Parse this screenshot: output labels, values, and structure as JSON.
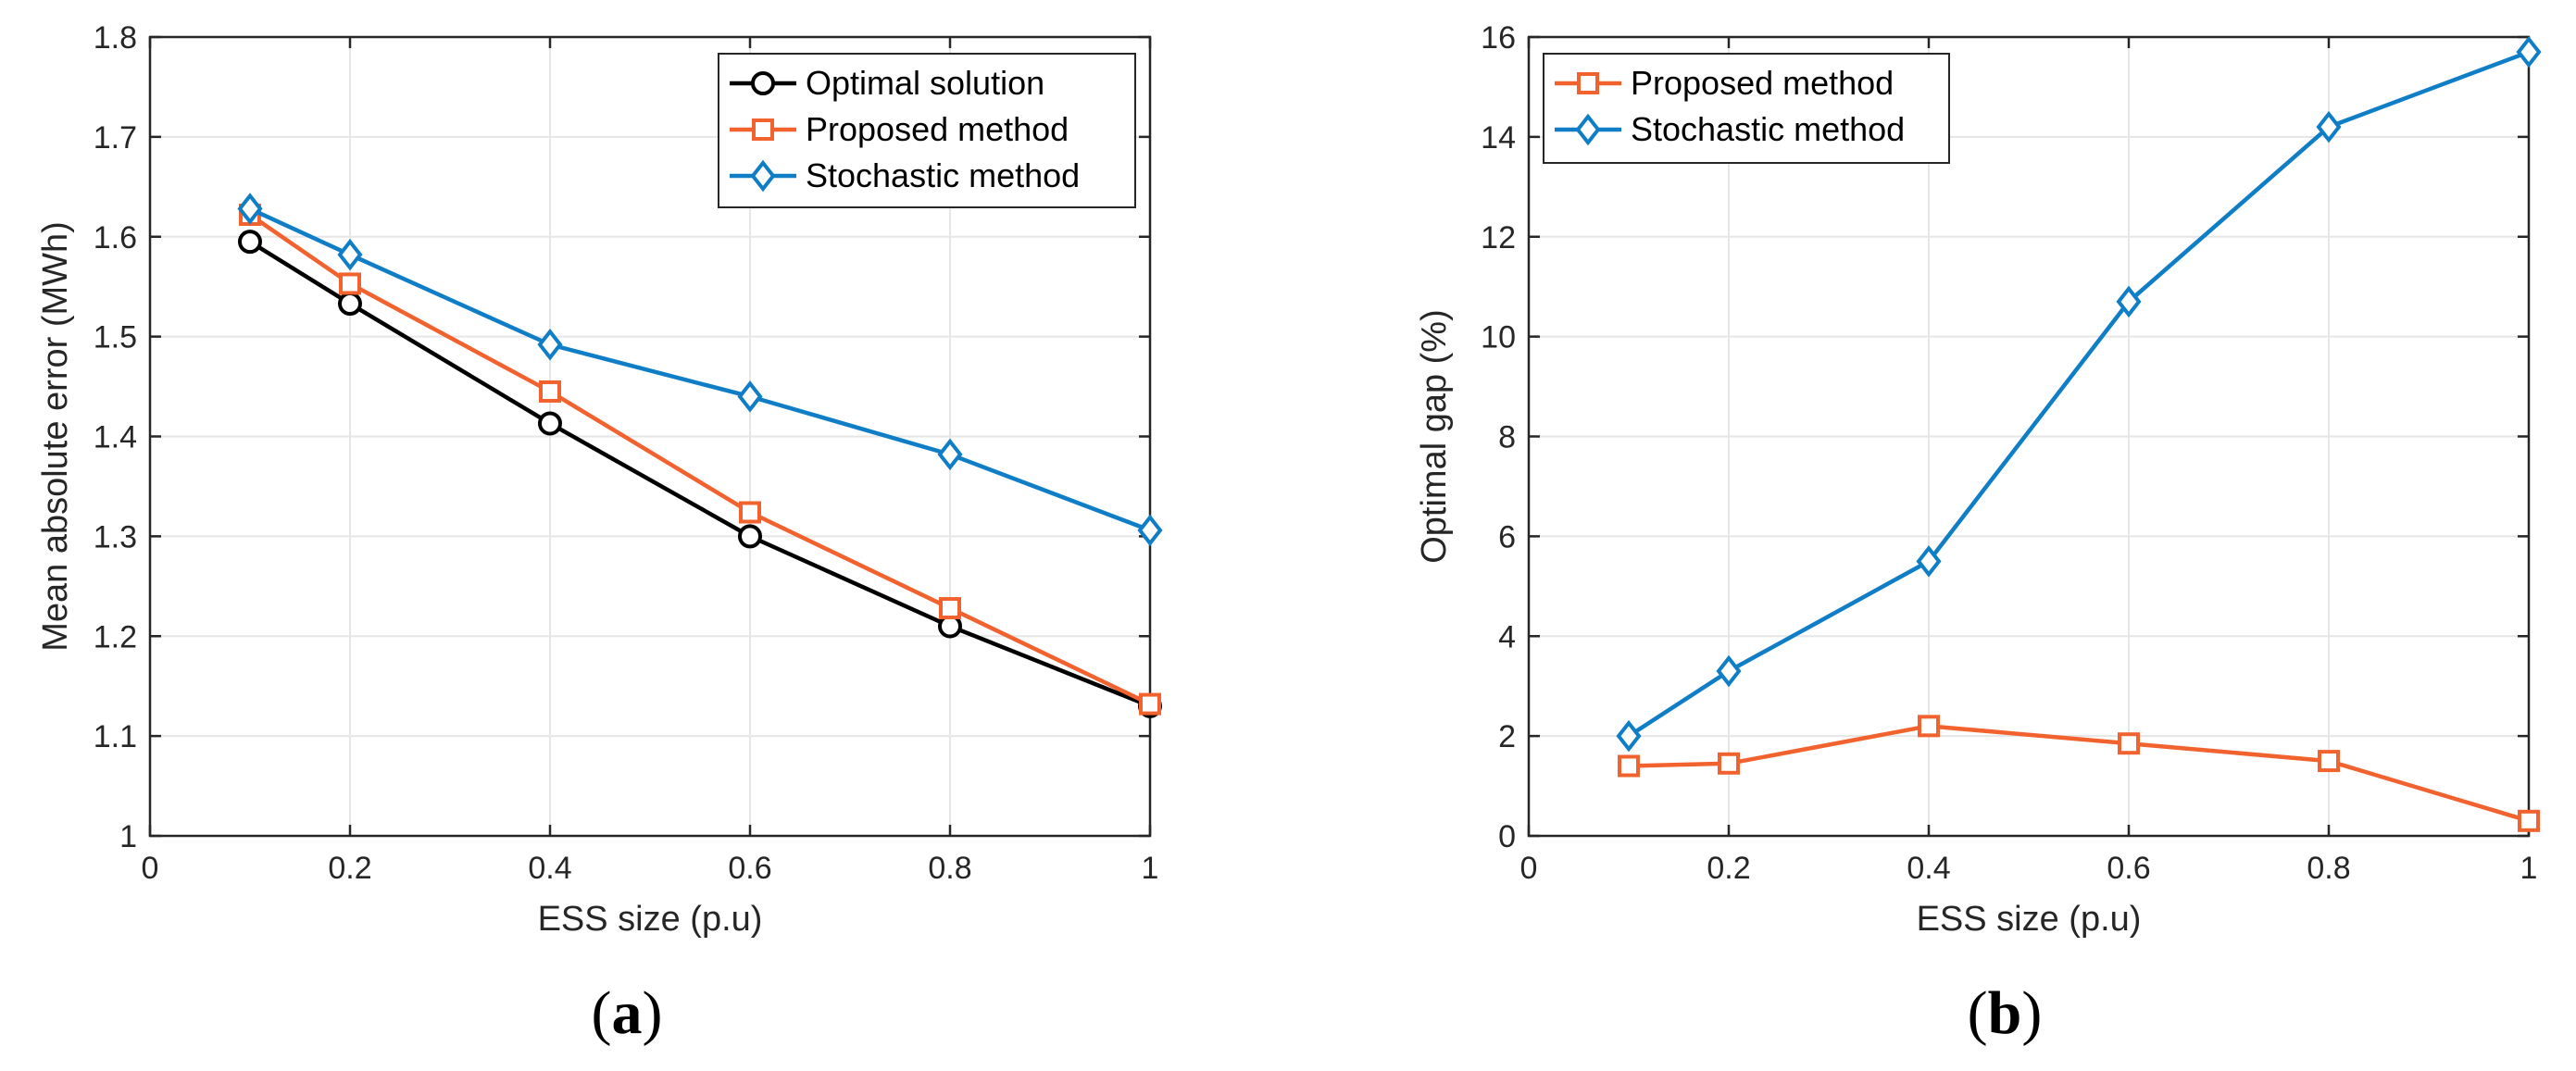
{
  "chart_data": [
    {
      "type": "line",
      "panel_label": {
        "open": "(",
        "letter": "a",
        "close": ")"
      },
      "title": "",
      "xlabel": "ESS size (p.u)",
      "ylabel": "Mean absolute error (MWh)",
      "xlim": [
        0,
        1
      ],
      "ylim": [
        1,
        1.8
      ],
      "xticks": [
        0,
        0.2,
        0.4,
        0.6,
        0.8,
        1
      ],
      "xtick_labels": [
        "0",
        "0.2",
        "0.4",
        "0.6",
        "0.8",
        "1"
      ],
      "yticks": [
        1,
        1.1,
        1.2,
        1.3,
        1.4,
        1.5,
        1.6,
        1.7,
        1.8
      ],
      "ytick_labels": [
        "1",
        "1.1",
        "1.2",
        "1.3",
        "1.4",
        "1.5",
        "1.6",
        "1.7",
        "1.8"
      ],
      "grid": true,
      "legend_position": "top-right",
      "x": [
        0.1,
        0.2,
        0.4,
        0.6,
        0.8,
        1
      ],
      "series": [
        {
          "name": "Optimal solution",
          "marker": "circle",
          "color": "#000000",
          "values": [
            1.595,
            1.533,
            1.413,
            1.3,
            1.21,
            1.13
          ]
        },
        {
          "name": "Proposed method",
          "marker": "square",
          "color": "#F2622E",
          "values": [
            1.622,
            1.553,
            1.445,
            1.324,
            1.228,
            1.132
          ]
        },
        {
          "name": "Stochastic method",
          "marker": "diamond",
          "color": "#0F7EC7",
          "values": [
            1.628,
            1.582,
            1.492,
            1.44,
            1.382,
            1.306
          ]
        }
      ]
    },
    {
      "type": "line",
      "panel_label": {
        "open": "(",
        "letter": "b",
        "close": ")"
      },
      "title": "",
      "xlabel": "ESS size (p.u)",
      "ylabel": "Optimal gap (%)",
      "xlim": [
        0,
        1
      ],
      "ylim": [
        0,
        16
      ],
      "xticks": [
        0,
        0.2,
        0.4,
        0.6,
        0.8,
        1
      ],
      "xtick_labels": [
        "0",
        "0.2",
        "0.4",
        "0.6",
        "0.8",
        "1"
      ],
      "yticks": [
        0,
        2,
        4,
        6,
        8,
        10,
        12,
        14,
        16
      ],
      "ytick_labels": [
        "0",
        "2",
        "4",
        "6",
        "8",
        "10",
        "12",
        "14",
        "16"
      ],
      "grid": true,
      "legend_position": "top-left",
      "x": [
        0.1,
        0.2,
        0.4,
        0.6,
        0.8,
        1
      ],
      "series": [
        {
          "name": "Proposed method",
          "marker": "square",
          "color": "#F2622E",
          "values": [
            1.4,
            1.45,
            2.2,
            1.85,
            1.5,
            0.3
          ]
        },
        {
          "name": "Stochastic method",
          "marker": "diamond",
          "color": "#0F7EC7",
          "values": [
            2.0,
            3.3,
            5.5,
            10.7,
            14.2,
            15.7
          ]
        }
      ]
    }
  ]
}
